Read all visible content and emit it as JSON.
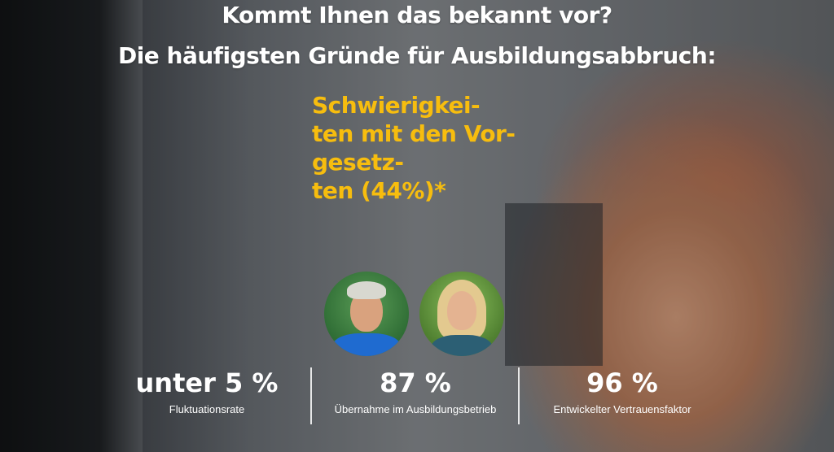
{
  "headline": {
    "line1": "Kommt Ihnen das bekannt vor?",
    "line2": "Die häufigsten Gründe für Ausbildungsabbruch:"
  },
  "reason": {
    "lines": [
      "Schwierigkei-",
      "ten mit den Vor-",
      "gesetz-",
      "ten (44%)*"
    ],
    "color": "#f7bd0e"
  },
  "stats": [
    {
      "value": "unter 5 %",
      "label": "Fluktuationsrate"
    },
    {
      "value": "87 %",
      "label": "Übernahme im Ausbildungsbetrieb"
    },
    {
      "value": "96 %",
      "label": "Entwickelter Vertrauensfaktor"
    }
  ]
}
